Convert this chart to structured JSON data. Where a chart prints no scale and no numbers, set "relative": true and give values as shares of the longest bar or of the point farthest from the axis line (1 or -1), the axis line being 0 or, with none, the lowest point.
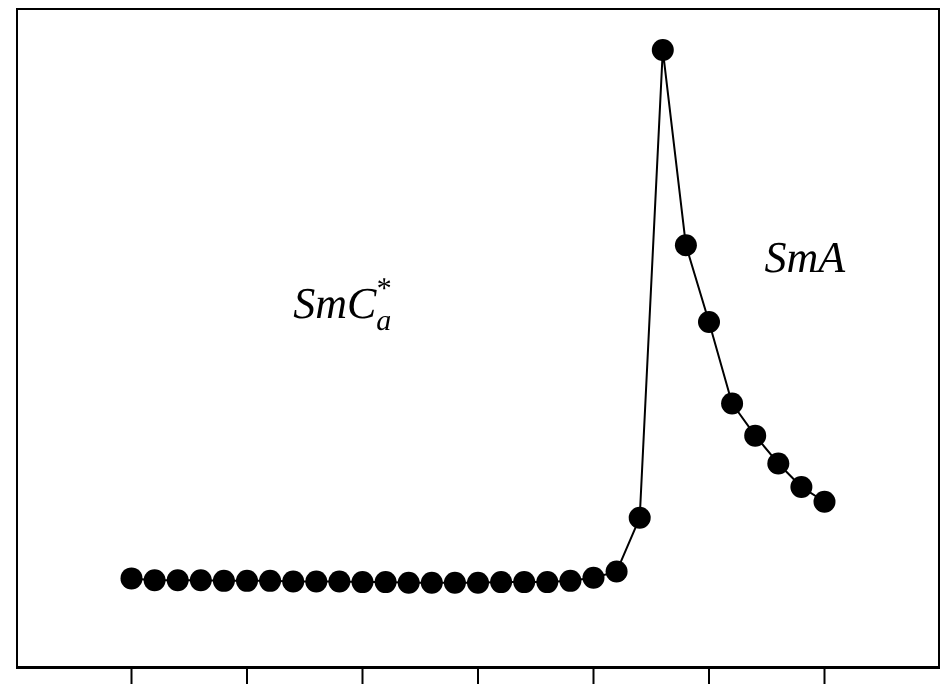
{
  "chart_data": {
    "type": "line",
    "relative": true,
    "marker": "circle",
    "line_style": "solid",
    "grid": false,
    "legend": false,
    "categories": [
      null,
      null,
      null,
      null,
      null,
      null,
      null,
      null,
      null,
      null,
      null,
      null,
      null,
      null,
      null,
      null,
      null,
      null,
      null,
      null,
      null,
      null,
      null,
      null,
      null,
      null,
      null,
      null,
      null,
      null,
      null
    ],
    "series": [
      {
        "color": "#000000",
        "values": [
          0.145,
          0.142,
          0.142,
          0.142,
          0.141,
          0.141,
          0.141,
          0.14,
          0.14,
          0.14,
          0.139,
          0.139,
          0.138,
          0.138,
          0.138,
          0.138,
          0.139,
          0.139,
          0.139,
          0.141,
          0.146,
          0.156,
          0.243,
          1,
          0.684,
          0.56,
          0.428,
          0.376,
          0.331,
          0.293,
          0.269
        ]
      }
    ],
    "annotations": [
      "SmC$_{a}$$^{*}$",
      "SmA"
    ]
  }
}
